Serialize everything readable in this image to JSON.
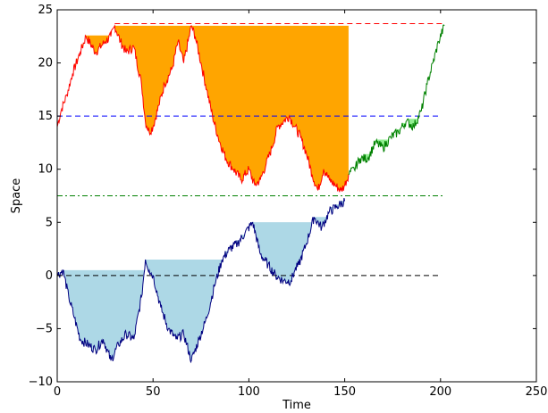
{
  "chart_data": {
    "type": "line",
    "xlabel": "Time",
    "ylabel": "Space",
    "xlim": [
      0,
      250
    ],
    "ylim": [
      -10,
      25
    ],
    "x_ticks": [
      0,
      50,
      100,
      150,
      200,
      250
    ],
    "y_ticks": [
      -10,
      -5,
      0,
      5,
      10,
      15,
      20,
      25
    ],
    "y_tick_labels": [
      "−10",
      "−5",
      "0",
      "5",
      "10",
      "15",
      "20",
      "25"
    ],
    "grid": false,
    "legend": "none",
    "series": [
      {
        "color": "#ff0000",
        "x": [
          0,
          2,
          5,
          8,
          12,
          15,
          20,
          25,
          28,
          30,
          33,
          36,
          40,
          44,
          46,
          48,
          50,
          53,
          56,
          60,
          63,
          66,
          70,
          72,
          75,
          78,
          81,
          84,
          88,
          92,
          96,
          100,
          103,
          106,
          109,
          112,
          115,
          118,
          121,
          124,
          127,
          130,
          133,
          136,
          139,
          142,
          145,
          148,
          150,
          152
        ],
        "y": [
          14,
          15.5,
          17,
          19,
          21,
          22.5,
          21,
          22,
          22.5,
          23.5,
          22,
          21,
          21.5,
          18,
          14.5,
          13.5,
          14,
          16,
          18,
          19.5,
          22,
          20,
          23.5,
          22.5,
          20,
          17.5,
          15,
          13,
          11,
          10,
          9,
          10,
          8.5,
          9,
          10.5,
          12,
          14,
          14.5,
          15,
          14,
          13,
          11.5,
          9.5,
          8,
          10,
          9,
          8.5,
          8,
          8.5,
          9.5
        ]
      },
      {
        "color": "#000080",
        "x": [
          0,
          3,
          6,
          9,
          12,
          16,
          20,
          24,
          28,
          32,
          36,
          40,
          44,
          46,
          48,
          50,
          54,
          58,
          62,
          66,
          70,
          74,
          78,
          82,
          86,
          90,
          94,
          98,
          102,
          106,
          110,
          114,
          118,
          122,
          124,
          126,
          130,
          134,
          138,
          142,
          146,
          150
        ],
        "y": [
          0,
          0.5,
          -2,
          -4,
          -6,
          -6.5,
          -7,
          -6,
          -8,
          -6.5,
          -5.5,
          -6,
          -2,
          1.5,
          0.5,
          0,
          -3,
          -5,
          -6,
          -5.5,
          -8,
          -6,
          -4,
          -1,
          1.5,
          2.5,
          3,
          4,
          5,
          2,
          1,
          0,
          -0.5,
          -0.5,
          0.5,
          1,
          3,
          5.5,
          4.5,
          6,
          6.5,
          7
        ]
      },
      {
        "color": "#008000",
        "x": [
          152,
          155,
          158,
          162,
          166,
          170,
          174,
          178,
          182,
          186,
          190,
          193,
          196,
          199,
          202
        ],
        "y": [
          9.5,
          10,
          11,
          11,
          12.5,
          12,
          13,
          13.5,
          14.5,
          14,
          15.5,
          18,
          20,
          22,
          23.5
        ]
      }
    ],
    "reference_lines": [
      {
        "y": 0,
        "x_range": [
          0,
          200
        ],
        "style": "dashed",
        "color": "#000000"
      },
      {
        "y": 7.5,
        "x_range": [
          0,
          202
        ],
        "style": "dashdot",
        "color": "#008000"
      },
      {
        "y": 15,
        "x_range": [
          0,
          200
        ],
        "style": "dashed",
        "color": "#0000ff"
      },
      {
        "y": 23.7,
        "x_range": [
          30,
          202
        ],
        "style": "dashed",
        "color": "#ff0000"
      }
    ],
    "shaded_regions": [
      {
        "color": "#ffa500",
        "description": "between red path and running maximum 23.7"
      },
      {
        "color": "#add8e6",
        "description": "between blue path and running maxima 1.5 and 7"
      },
      {
        "color": "#90ee90",
        "description": "between green path and running maximum"
      }
    ]
  }
}
